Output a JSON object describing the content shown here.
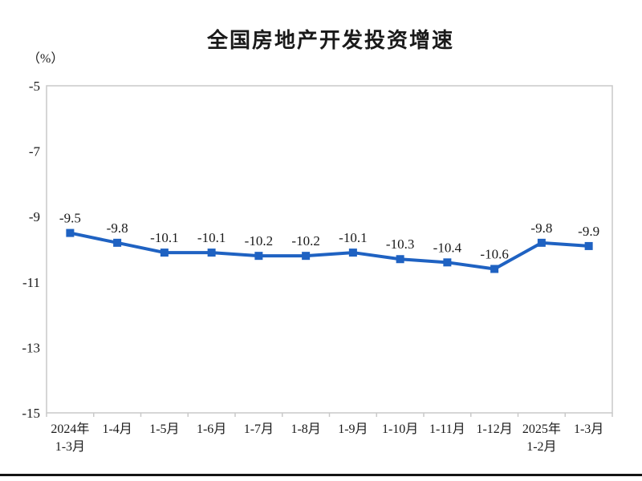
{
  "page": {
    "title": "全国房地产开发投资增速",
    "unit_label": "（%）"
  },
  "chart_data": {
    "type": "line",
    "title": "全国房地产开发投资增速",
    "unit": "（%）",
    "categories": [
      "2024年\n1-3月",
      "1-4月",
      "1-5月",
      "1-6月",
      "1-7月",
      "1-8月",
      "1-9月",
      "1-10月",
      "1-11月",
      "1-12月",
      "2025年\n1-2月",
      "1-3月"
    ],
    "values": [
      -9.5,
      -9.8,
      -10.1,
      -10.1,
      -10.2,
      -10.2,
      -10.1,
      -10.3,
      -10.4,
      -10.6,
      -9.8,
      -9.9
    ],
    "data_labels": [
      "-9.5",
      "-9.8",
      "-10.1",
      "-10.1",
      "-10.2",
      "-10.2",
      "-10.1",
      "-10.3",
      "-10.4",
      "-10.6",
      "-9.8",
      "-9.9"
    ],
    "ylim": [
      -15,
      -5
    ],
    "yticks": [
      -5,
      -7,
      -9,
      -11,
      -13,
      -15
    ],
    "grid": false,
    "legend": "none",
    "marker": "square",
    "colors": {
      "line": "#1f62c2",
      "text": "#1a1a1a",
      "plot_border": "#c9c9c9"
    }
  }
}
